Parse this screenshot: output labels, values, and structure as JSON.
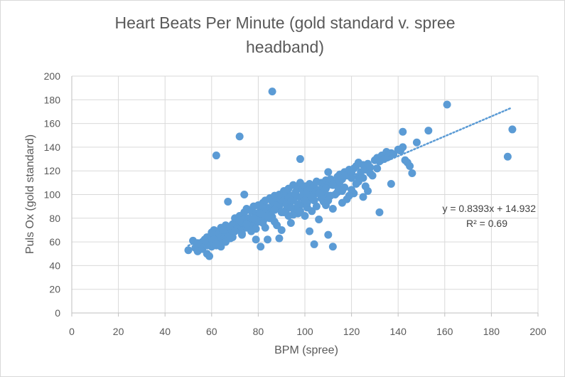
{
  "chart_data": {
    "type": "scatter",
    "title": "Heart Beats Per Minute (gold standard v. spree headband)",
    "title_lines": [
      "Heart Beats Per Minute (gold standard v. spree",
      "headband)"
    ],
    "xlabel": "BPM (spree)",
    "ylabel": "Puls Ox (gold standard)",
    "xlim": [
      0,
      200
    ],
    "ylim": [
      0,
      200
    ],
    "x_ticks": [
      "0",
      "20",
      "40",
      "60",
      "80",
      "100",
      "120",
      "140",
      "160",
      "180",
      "200"
    ],
    "y_ticks": [
      "0",
      "20",
      "40",
      "60",
      "80",
      "100",
      "120",
      "140",
      "160",
      "180",
      "200"
    ],
    "grid": true,
    "legend": "none",
    "marker_color": "#5b9bd5",
    "trendline": {
      "type": "linear",
      "slope": 0.8393,
      "intercept": 14.932,
      "x_range": [
        50,
        188
      ],
      "style": "dotted",
      "equation": "y = 0.8393x + 14.932",
      "r_squared": "R² = 0.69"
    },
    "series": [
      {
        "x": [
          50,
          52,
          53,
          54,
          55,
          56,
          56,
          57,
          57,
          58,
          58,
          59,
          59,
          60,
          60,
          61,
          61,
          62,
          62,
          63,
          63,
          64,
          64,
          65,
          65,
          66,
          66,
          67,
          67,
          68,
          68,
          69,
          69,
          70,
          70,
          71,
          71,
          72,
          72,
          73,
          73,
          74,
          74,
          75,
          75,
          76,
          76,
          77,
          77,
          78,
          78,
          79,
          79,
          80,
          80,
          81,
          81,
          82,
          82,
          83,
          83,
          84,
          84,
          85,
          85,
          86,
          86,
          87,
          87,
          88,
          88,
          89,
          89,
          90,
          90,
          91,
          91,
          92,
          92,
          93,
          93,
          94,
          94,
          95,
          95,
          96,
          96,
          97,
          97,
          98,
          98,
          99,
          99,
          100,
          100,
          101,
          101,
          102,
          102,
          103,
          104,
          104,
          105,
          105,
          106,
          107,
          107,
          108,
          108,
          109,
          110,
          110,
          111,
          112,
          113,
          114,
          114,
          115,
          115,
          116,
          117,
          118,
          119,
          120,
          120,
          121,
          122,
          123,
          123,
          124,
          125,
          126,
          127,
          128,
          130,
          131,
          132,
          133,
          134,
          135,
          136,
          137,
          138,
          140,
          141,
          142,
          143,
          144,
          145,
          146,
          148,
          153,
          161,
          187,
          189,
          72,
          86,
          110,
          62,
          98,
          112,
          102,
          104,
          110,
          132,
          127,
          137,
          142,
          88,
          90,
          56,
          60,
          67,
          74,
          79,
          81,
          84,
          89,
          94,
          97,
          100,
          103,
          106,
          109,
          112,
          116,
          118,
          121,
          125,
          63,
          66,
          69,
          71,
          73,
          75,
          77,
          80,
          83,
          86,
          88,
          92,
          95,
          99,
          101,
          104,
          108,
          111,
          114,
          117,
          120,
          123,
          126,
          129,
          58,
          61,
          64,
          67,
          70,
          73,
          76,
          79,
          82,
          85,
          87,
          90,
          93,
          96,
          98,
          101,
          105,
          107,
          110,
          113,
          116,
          119,
          122,
          125,
          128,
          131,
          54,
          57,
          62,
          65,
          68,
          72,
          75,
          78,
          81,
          84,
          87,
          91,
          94,
          97,
          100,
          103,
          106,
          109,
          112
        ],
        "y": [
          53,
          61,
          55,
          52,
          57,
          60,
          54,
          62,
          58,
          64,
          50,
          59,
          48,
          66,
          56,
          63,
          70,
          61,
          57,
          67,
          59,
          72,
          64,
          68,
          62,
          74,
          60,
          71,
          65,
          73,
          67,
          75,
          69,
          80,
          70,
          77,
          72,
          82,
          74,
          76,
          70,
          85,
          79,
          88,
          72,
          80,
          75,
          86,
          78,
          90,
          74,
          84,
          82,
          91,
          77,
          88,
          83,
          93,
          85,
          95,
          80,
          89,
          86,
          97,
          84,
          94,
          88,
          99,
          87,
          96,
          91,
          100,
          90,
          98,
          93,
          103,
          95,
          101,
          92,
          105,
          97,
          99,
          94,
          108,
          96,
          102,
          100,
          106,
          91,
          110,
          98,
          104,
          99,
          107,
          97,
          103,
          94,
          109,
          101,
          105,
          100,
          108,
          103,
          111,
          104,
          98,
          110,
          106,
          102,
          112,
          108,
          99,
          113,
          110,
          109,
          115,
          107,
          117,
          111,
          113,
          119,
          116,
          121,
          118,
          114,
          122,
          124,
          115,
          127,
          119,
          125,
          121,
          126,
          123,
          129,
          131,
          128,
          133,
          130,
          136,
          132,
          135,
          134,
          138,
          137,
          140,
          129,
          127,
          124,
          118,
          144,
          154,
          176,
          132,
          155,
          149,
          187,
          119,
          133,
          130,
          56,
          69,
          58,
          66,
          85,
          103,
          109,
          153,
          90,
          70,
          58,
          68,
          94,
          100,
          62,
          56,
          62,
          63,
          76,
          84,
          82,
          86,
          79,
          91,
          88,
          93,
          96,
          101,
          98,
          60,
          66,
          64,
          71,
          67,
          73,
          69,
          78,
          72,
          81,
          74,
          87,
          83,
          92,
          89,
          95,
          94,
          99,
          102,
          106,
          104,
          111,
          107,
          116,
          57,
          62,
          56,
          64,
          69,
          66,
          73,
          71,
          76,
          80,
          77,
          85,
          82,
          88,
          86,
          93,
          90,
          97,
          95,
          100,
          103,
          99,
          109,
          114,
          118,
          122,
          59,
          61,
          58,
          70,
          63,
          78,
          75,
          80,
          84,
          82,
          87,
          85,
          89,
          92,
          95,
          98,
          101,
          105,
          108
        ]
      }
    ]
  }
}
